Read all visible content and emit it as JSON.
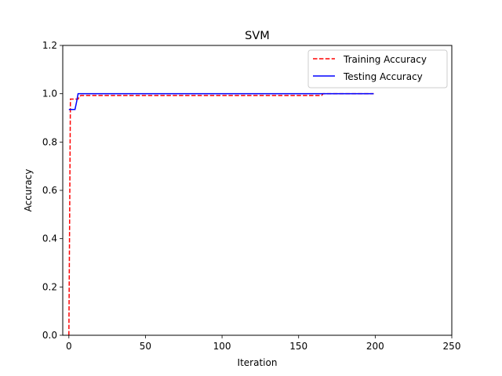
{
  "chart_data": {
    "type": "line",
    "title": "SVM",
    "xlabel": "Iteration",
    "ylabel": "Accuracy",
    "xlim": [
      -4,
      250
    ],
    "ylim": [
      0,
      1.2
    ],
    "xticks": [
      0,
      50,
      100,
      150,
      200,
      250
    ],
    "yticks": [
      0.0,
      0.2,
      0.4,
      0.6,
      0.8,
      1.0,
      1.2
    ],
    "xtick_labels": [
      "0",
      "50",
      "100",
      "150",
      "200",
      "250"
    ],
    "ytick_labels": [
      "0.0",
      "0.2",
      "0.4",
      "0.6",
      "0.8",
      "1.0",
      "1.2"
    ],
    "grid": false,
    "legend_position": "top-right",
    "series": [
      {
        "name": "Training Accuracy",
        "color": "#ff0000",
        "style": "dashed",
        "x": [
          0,
          1,
          2,
          3,
          4,
          5,
          6,
          7,
          8,
          10,
          20,
          50,
          100,
          150,
          165,
          166,
          170,
          199
        ],
        "y": [
          0.0,
          0.978,
          0.978,
          0.978,
          0.978,
          0.978,
          0.978,
          0.99,
          0.993,
          0.993,
          0.993,
          0.993,
          0.993,
          0.993,
          0.993,
          1.0,
          1.0,
          1.0
        ]
      },
      {
        "name": "Testing Accuracy",
        "color": "#0000ff",
        "style": "solid",
        "x": [
          0,
          1,
          2,
          3,
          4,
          5,
          6,
          7,
          10,
          50,
          100,
          150,
          199
        ],
        "y": [
          0.935,
          0.935,
          0.935,
          0.935,
          0.935,
          0.965,
          1.0,
          1.0,
          1.0,
          1.0,
          1.0,
          1.0,
          1.0
        ]
      }
    ]
  }
}
